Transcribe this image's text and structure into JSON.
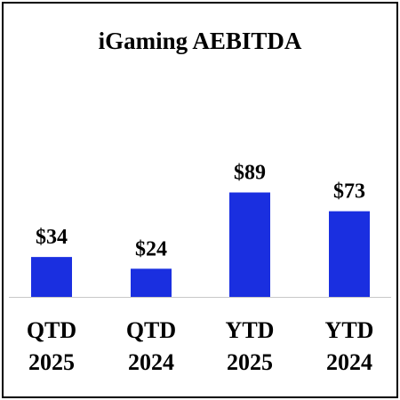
{
  "chart_data": {
    "type": "bar",
    "title": "iGaming AEBITDA",
    "categories": [
      [
        "QTD",
        "2025"
      ],
      [
        "QTD",
        "2024"
      ],
      [
        "YTD",
        "2025"
      ],
      [
        "YTD",
        "2024"
      ]
    ],
    "values": [
      34,
      24,
      89,
      73
    ],
    "data_labels": [
      "$34",
      "$24",
      "$89",
      "$73"
    ],
    "ylim": [
      0,
      100
    ],
    "grid": false,
    "legend": "none",
    "colors": {
      "bar": "#1a2fe0",
      "axis": "#c8c8c8",
      "border": "#000000"
    }
  }
}
